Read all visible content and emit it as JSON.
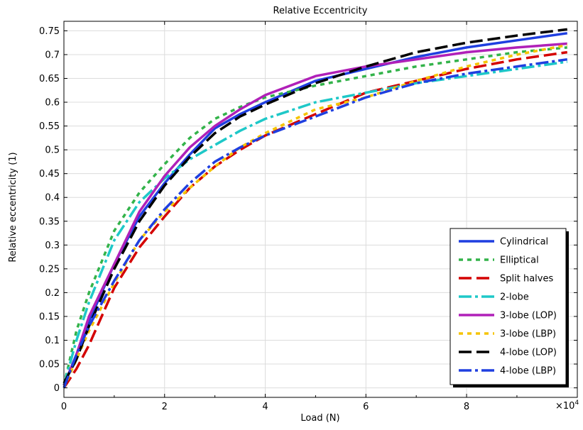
{
  "chart_data": {
    "type": "line",
    "title": "Relative Eccentricity",
    "xlabel": "Load (N)",
    "ylabel": "Relative eccentricity (1)",
    "x_multiplier_label": "×10",
    "x_multiplier_exp": "4",
    "xlim": [
      0,
      10.2
    ],
    "ylim": [
      -0.02,
      0.77
    ],
    "x_ticks": [
      0,
      2,
      4,
      6,
      8
    ],
    "x_tick_labels": [
      "0",
      "2",
      "4",
      "6",
      "8"
    ],
    "y_ticks": [
      0,
      0.05,
      0.1,
      0.15,
      0.2,
      0.25,
      0.3,
      0.35,
      0.4,
      0.45,
      0.5,
      0.55,
      0.6,
      0.65,
      0.7,
      0.75
    ],
    "y_tick_labels": [
      "0",
      "0.05",
      "0.1",
      "0.15",
      "0.2",
      "0.25",
      "0.3",
      "0.35",
      "0.4",
      "0.45",
      "0.5",
      "0.55",
      "0.6",
      "0.65",
      "0.7",
      "0.75"
    ],
    "grid": true,
    "legend_position": "bottom-right",
    "series": [
      {
        "name": "Cylindrical",
        "color": "#1f3fe0",
        "dash": "solid",
        "x": [
          0,
          0.25,
          0.5,
          1,
          1.5,
          2,
          2.5,
          3,
          3.5,
          4,
          5,
          6,
          7,
          8,
          9,
          10
        ],
        "y": [
          0.005,
          0.07,
          0.14,
          0.26,
          0.36,
          0.43,
          0.49,
          0.545,
          0.575,
          0.6,
          0.645,
          0.67,
          0.695,
          0.715,
          0.73,
          0.745
        ]
      },
      {
        "name": "Elliptical",
        "color": "#33b34a",
        "dash": "dot",
        "x": [
          0,
          0.25,
          0.5,
          1,
          1.5,
          2,
          2.5,
          3,
          3.5,
          4,
          5,
          6,
          7,
          8,
          9,
          10
        ],
        "y": [
          0.005,
          0.12,
          0.2,
          0.33,
          0.41,
          0.47,
          0.525,
          0.565,
          0.59,
          0.61,
          0.635,
          0.655,
          0.675,
          0.69,
          0.705,
          0.715
        ]
      },
      {
        "name": "Split halves",
        "color": "#d40000",
        "dash": "longdash",
        "x": [
          0,
          0.25,
          0.5,
          1,
          1.5,
          2,
          2.5,
          3,
          3.5,
          4,
          5,
          6,
          7,
          8,
          9,
          10
        ],
        "y": [
          0.0,
          0.04,
          0.09,
          0.21,
          0.295,
          0.36,
          0.42,
          0.465,
          0.5,
          0.53,
          0.575,
          0.62,
          0.645,
          0.67,
          0.69,
          0.705
        ]
      },
      {
        "name": "2-lobe",
        "color": "#1ec8c8",
        "dash": "dashdot",
        "x": [
          0,
          0.25,
          0.5,
          1,
          1.5,
          2,
          2.5,
          3,
          3.5,
          4,
          5,
          6,
          7,
          8,
          9,
          10
        ],
        "y": [
          0.005,
          0.1,
          0.18,
          0.31,
          0.39,
          0.44,
          0.48,
          0.51,
          0.54,
          0.565,
          0.6,
          0.62,
          0.64,
          0.655,
          0.67,
          0.685
        ]
      },
      {
        "name": "3-lobe (LOP)",
        "color": "#b020b8",
        "dash": "solid",
        "x": [
          0,
          0.25,
          0.5,
          1,
          1.5,
          2,
          2.5,
          3,
          3.5,
          4,
          5,
          6,
          7,
          8,
          9,
          10
        ],
        "y": [
          0.005,
          0.07,
          0.15,
          0.26,
          0.37,
          0.445,
          0.505,
          0.55,
          0.585,
          0.615,
          0.655,
          0.675,
          0.69,
          0.705,
          0.715,
          0.723
        ]
      },
      {
        "name": "3-lobe (LBP)",
        "color": "#f5c400",
        "dash": "dot",
        "x": [
          0,
          0.25,
          0.5,
          1,
          1.5,
          2,
          2.5,
          3,
          3.5,
          4,
          5,
          6,
          7,
          8,
          9,
          10
        ],
        "y": [
          0.0,
          0.06,
          0.12,
          0.22,
          0.31,
          0.37,
          0.42,
          0.465,
          0.505,
          0.535,
          0.585,
          0.61,
          0.645,
          0.675,
          0.7,
          0.72
        ]
      },
      {
        "name": "4-lobe (LOP)",
        "color": "#000000",
        "dash": "longdash",
        "x": [
          0,
          0.25,
          0.5,
          1,
          1.5,
          2,
          2.5,
          3,
          3.5,
          4,
          5,
          6,
          7,
          8,
          9,
          10
        ],
        "y": [
          0.01,
          0.06,
          0.13,
          0.25,
          0.35,
          0.425,
          0.485,
          0.535,
          0.57,
          0.595,
          0.64,
          0.675,
          0.705,
          0.725,
          0.74,
          0.753
        ]
      },
      {
        "name": "4-lobe (LBP)",
        "color": "#1f3fe0",
        "dash": "dashdot",
        "x": [
          0,
          0.25,
          0.5,
          1,
          1.5,
          2,
          2.5,
          3,
          3.5,
          4,
          5,
          6,
          7,
          8,
          9,
          10
        ],
        "y": [
          0.0,
          0.07,
          0.13,
          0.225,
          0.31,
          0.375,
          0.43,
          0.475,
          0.505,
          0.53,
          0.57,
          0.61,
          0.64,
          0.66,
          0.675,
          0.69
        ]
      }
    ]
  }
}
